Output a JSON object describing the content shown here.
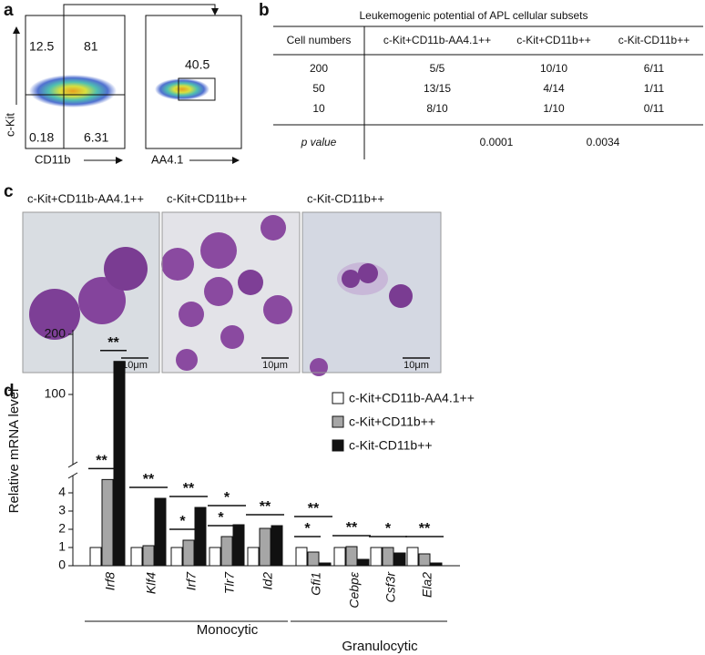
{
  "panel_a": {
    "label": "a",
    "plot1": {
      "quadrants": [
        12.5,
        81,
        0.18,
        6.31
      ],
      "ylabel": "c-Kit",
      "xlabel": "CD11b"
    },
    "plot2": {
      "gate": 40.5,
      "xlabel": "AA4.1"
    }
  },
  "panel_b": {
    "label": "b",
    "title": "Leukemogenic potential of APL cellular subsets",
    "header": [
      "Cell numbers",
      "c-Kit+CD11b-AA4.1++",
      "c-Kit+CD11b++",
      "c-Kit-CD11b++"
    ],
    "rows": [
      [
        200,
        "5/5",
        "10/10",
        "6/11"
      ],
      [
        50,
        "13/15",
        "4/14",
        "1/11"
      ],
      [
        10,
        "8/10",
        "1/10",
        "0/11"
      ]
    ],
    "pvalue_row": [
      "p value",
      0.0001,
      0.0034
    ]
  },
  "panel_c": {
    "label": "c",
    "images": [
      {
        "title": "c-Kit+CD11b-AA4.1++",
        "scale": "10μm"
      },
      {
        "title": "c-Kit+CD11b++",
        "scale": "10μm"
      },
      {
        "title": "c-Kit-CD11b++",
        "scale": "10μm"
      }
    ]
  },
  "chart_data": {
    "type": "bar",
    "panel_label": "d",
    "ylabel": "Relative mRNA level",
    "categories": [
      "Irf8",
      "Klf4",
      "Irf7",
      "Tlr7",
      "Id2",
      "Gfi1",
      "Cebpε",
      "Csf3r",
      "Ela2"
    ],
    "series": [
      {
        "name": "c-Kit+CD11b-AA4.1++",
        "color": "#ffffff",
        "values": [
          1,
          1,
          1,
          1,
          1,
          1,
          1,
          1,
          1
        ]
      },
      {
        "name": "c-Kit+CD11b++",
        "color": "#a6a6a6",
        "values": [
          17,
          1.1,
          1.4,
          1.6,
          2.05,
          0.75,
          1.05,
          1,
          0.65
        ]
      },
      {
        "name": "c-Kit-CD11b++",
        "color": "#111111",
        "values": [
          155,
          3.7,
          3.2,
          2.25,
          2.2,
          0.15,
          0.35,
          0.7,
          0.15
        ]
      }
    ],
    "ylim": [
      0,
      200
    ],
    "yticks": [
      0,
      1,
      2,
      3,
      4,
      100,
      200
    ],
    "ybreak": [
      4,
      100
    ],
    "groups": [
      {
        "name": "Monocytic",
        "from": 0,
        "to": 4
      },
      {
        "name": "Granulocytic",
        "from": 5,
        "to": 8
      }
    ],
    "significance": [
      {
        "category": 0,
        "from": 0,
        "to": 1,
        "label": "**"
      },
      {
        "category": 0,
        "from": 1,
        "to": 2,
        "label": "**"
      },
      {
        "category": 1,
        "from": 0,
        "to": 2,
        "label": "**"
      },
      {
        "category": 2,
        "from": 0,
        "to": 1,
        "label": "*"
      },
      {
        "category": 2,
        "from": 0,
        "to": 2,
        "label": "**"
      },
      {
        "category": 3,
        "from": 0,
        "to": 1,
        "label": "*"
      },
      {
        "category": 3,
        "from": 0,
        "to": 2,
        "label": "*"
      },
      {
        "category": 4,
        "from": 0,
        "to": 2,
        "label": "**"
      },
      {
        "category": 5,
        "from": 0,
        "to": 1,
        "label": "*"
      },
      {
        "category": 5,
        "from": 0,
        "to": 2,
        "label": "**"
      },
      {
        "category": 6,
        "from": 0,
        "to": 2,
        "label": "**"
      },
      {
        "category": 7,
        "from": 0,
        "to": 2,
        "label": "*"
      },
      {
        "category": 8,
        "from": 0,
        "to": 2,
        "label": "**"
      }
    ]
  }
}
